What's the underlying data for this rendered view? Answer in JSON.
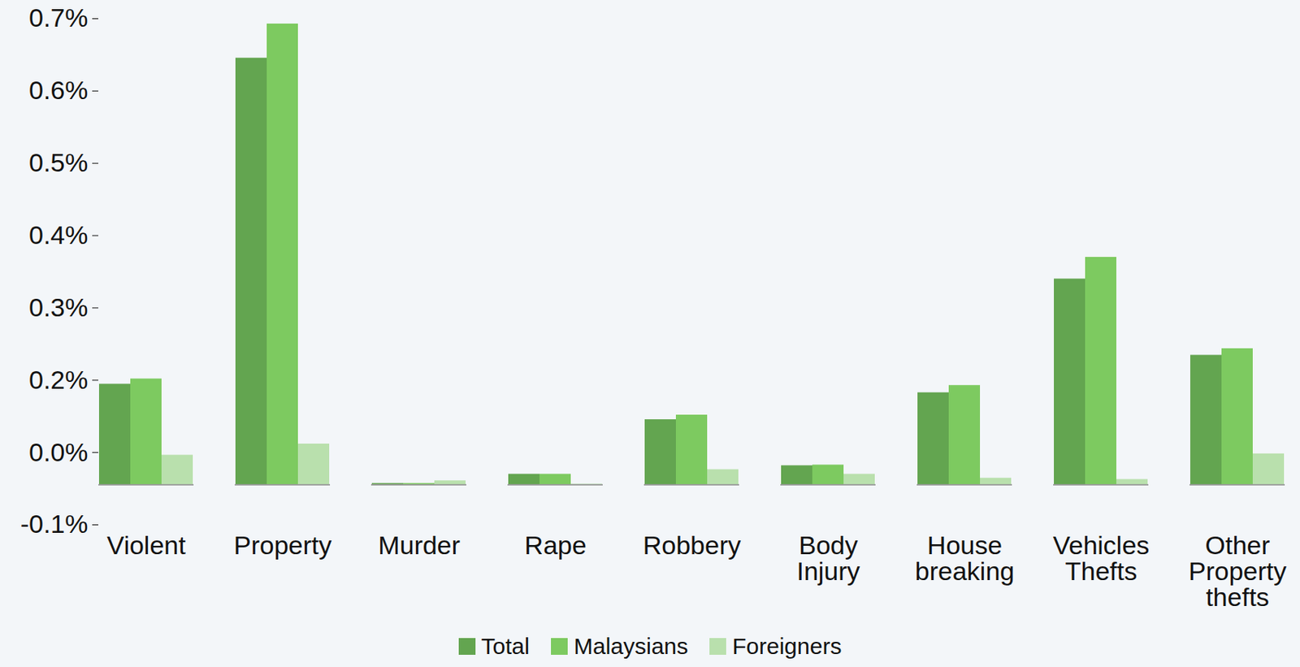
{
  "chart_data": {
    "type": "bar",
    "categories": [
      "Violent",
      "Property",
      "Murder",
      "Rape",
      "Robbery",
      "Body Injury",
      "House breaking",
      "Vehicles Thefts",
      "Other Property thefts"
    ],
    "series": [
      {
        "name": "Total",
        "color": "#63a550",
        "values": [
          0.153,
          0.649,
          0.002,
          0.016,
          0.099,
          0.029,
          0.14,
          0.313,
          0.197
        ]
      },
      {
        "name": "Malaysians",
        "color": "#7dca60",
        "values": [
          0.161,
          0.701,
          0.002,
          0.016,
          0.106,
          0.03,
          0.151,
          0.346,
          0.207
        ]
      },
      {
        "name": "Foreigners",
        "color": "#b9e0ad",
        "values": [
          0.045,
          0.062,
          0.006,
          0.001,
          0.023,
          0.016,
          0.01,
          0.008,
          0.047
        ]
      }
    ],
    "ylim": [
      -0.061,
      0.709
    ],
    "yticks": [
      {
        "value": -0.061,
        "label": "-0.1%"
      },
      {
        "value": 0.049,
        "label": "0.0%"
      },
      {
        "value": 0.159,
        "label": "0.2%"
      },
      {
        "value": 0.269,
        "label": "0.3%"
      },
      {
        "value": 0.379,
        "label": "0.4%"
      },
      {
        "value": 0.489,
        "label": "0.5%"
      },
      {
        "value": 0.599,
        "label": "0.6%"
      },
      {
        "value": 0.709,
        "label": "0.7%"
      }
    ],
    "grid": false,
    "legend": "bottom"
  }
}
